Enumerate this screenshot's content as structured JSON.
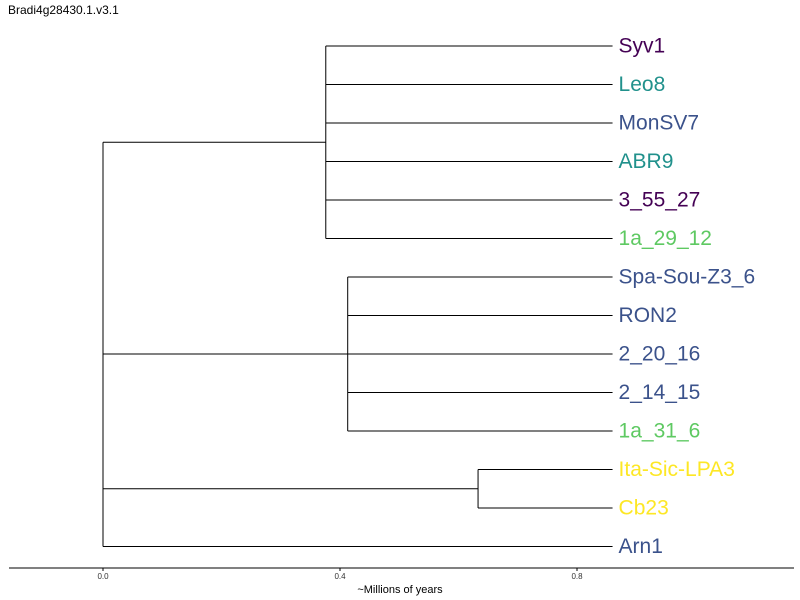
{
  "title": "Bradi4g28430.1.v3.1",
  "axis": {
    "title": "~Millions of years",
    "ticks": [
      0.0,
      0.4,
      0.8
    ],
    "tick_labels": [
      "0.0",
      "0.4",
      "0.8"
    ]
  },
  "colors": {
    "dark_purple": "#440154",
    "teal": "#21918c",
    "slate_blue": "#3b528b",
    "green": "#5ec962",
    "yellow": "#fde725",
    "line": "#000000"
  },
  "tips": [
    {
      "id": "syv1",
      "label": "Syv1",
      "color": "#440154"
    },
    {
      "id": "leo8",
      "label": "Leo8",
      "color": "#21918c"
    },
    {
      "id": "monsv7",
      "label": "MonSV7",
      "color": "#3b528b"
    },
    {
      "id": "abr9",
      "label": "ABR9",
      "color": "#21918c"
    },
    {
      "id": "3-55-27",
      "label": "3_55_27",
      "color": "#440154"
    },
    {
      "id": "1a-29-12",
      "label": "1a_29_12",
      "color": "#5ec962"
    },
    {
      "id": "spa-sou-z3-6",
      "label": "Spa-Sou-Z3_6",
      "color": "#3b528b"
    },
    {
      "id": "ron2",
      "label": "RON2",
      "color": "#3b528b"
    },
    {
      "id": "2-20-16",
      "label": "2_20_16",
      "color": "#3b528b"
    },
    {
      "id": "2-14-15",
      "label": "2_14_15",
      "color": "#3b528b"
    },
    {
      "id": "1a-31-6",
      "label": "1a_31_6",
      "color": "#5ec962"
    },
    {
      "id": "ita-sic-lpa3",
      "label": "Ita-Sic-LPA3",
      "color": "#fde725"
    },
    {
      "id": "cb23",
      "label": "Cb23",
      "color": "#fde725"
    },
    {
      "id": "arn1",
      "label": "Arn1",
      "color": "#3b528b"
    }
  ],
  "tip_depth": 0.86,
  "clades": [
    {
      "id": "clade-a",
      "node_depth": 0.376,
      "tips": [
        0,
        1,
        2,
        3,
        4,
        5
      ]
    },
    {
      "id": "clade-b",
      "node_depth": 0.413,
      "tips": [
        6,
        7,
        8,
        9,
        10
      ]
    },
    {
      "id": "clade-c",
      "node_depth": 0.633,
      "tips": [
        11,
        12
      ]
    }
  ],
  "root": {
    "node_depth": 0.0,
    "children": [
      "clade-a",
      "clade-b",
      "clade-c",
      13
    ]
  }
}
